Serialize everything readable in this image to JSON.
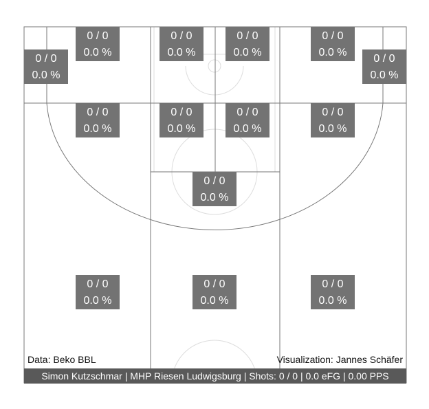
{
  "colors": {
    "zone_box": "#737373",
    "zone_text": "#ffffff",
    "court_line": "#777777",
    "paint_line": "#dddddd",
    "footer_bg": "#595959",
    "footer_text": "#ffffff",
    "credit_text": "#111111"
  },
  "chart_data": {
    "type": "shot-chart",
    "zones": [
      {
        "id": "corner-left",
        "count": "0 / 0",
        "pct": "0.0 %"
      },
      {
        "id": "wing-left-upper",
        "count": "0 / 0",
        "pct": "0.0 %"
      },
      {
        "id": "baseline-left-mid",
        "count": "0 / 0",
        "pct": "0.0 %"
      },
      {
        "id": "baseline-right-mid",
        "count": "0 / 0",
        "pct": "0.0 %"
      },
      {
        "id": "wing-right-upper",
        "count": "0 / 0",
        "pct": "0.0 %"
      },
      {
        "id": "corner-right",
        "count": "0 / 0",
        "pct": "0.0 %"
      },
      {
        "id": "midrange-left",
        "count": "0 / 0",
        "pct": "0.0 %"
      },
      {
        "id": "paint-left",
        "count": "0 / 0",
        "pct": "0.0 %"
      },
      {
        "id": "paint-right",
        "count": "0 / 0",
        "pct": "0.0 %"
      },
      {
        "id": "midrange-right",
        "count": "0 / 0",
        "pct": "0.0 %"
      },
      {
        "id": "top-key",
        "count": "0 / 0",
        "pct": "0.0 %"
      },
      {
        "id": "three-left",
        "count": "0 / 0",
        "pct": "0.0 %"
      },
      {
        "id": "three-center",
        "count": "0 / 0",
        "pct": "0.0 %"
      },
      {
        "id": "three-right",
        "count": "0 / 0",
        "pct": "0.0 %"
      }
    ]
  },
  "credits": {
    "data_source": "Data: Beko BBL",
    "visualization": "Visualization: Jannes Schäfer"
  },
  "footer": {
    "summary": "Simon Kutzschmar | MHP Riesen Ludwigsburg | Shots: 0 / 0 | 0.0 eFG | 0.00 PPS"
  }
}
